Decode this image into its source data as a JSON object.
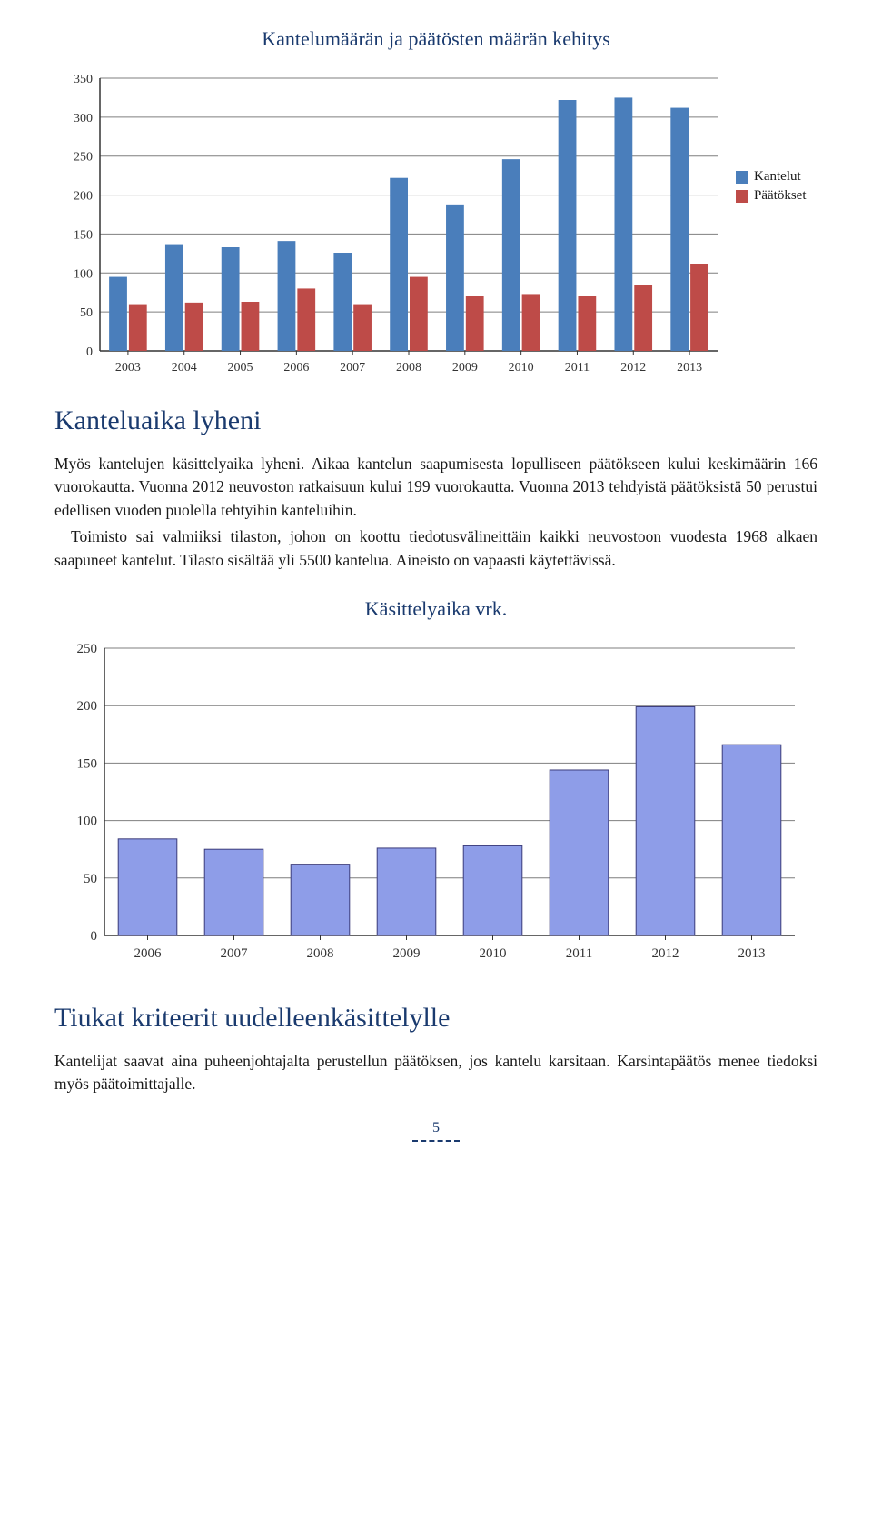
{
  "chart1": {
    "type": "grouped-bar",
    "title": "Kantelumäärän ja päätösten määrän kehitys",
    "categories": [
      "2003",
      "2004",
      "2005",
      "2006",
      "2007",
      "2008",
      "2009",
      "2010",
      "2011",
      "2012",
      "2013"
    ],
    "series": [
      {
        "name": "Kantelut",
        "color": "#4a7ebb",
        "values": [
          95,
          137,
          133,
          141,
          126,
          222,
          188,
          246,
          322,
          325,
          312
        ]
      },
      {
        "name": "Päätökset",
        "color": "#be4b48",
        "values": [
          60,
          62,
          63,
          80,
          60,
          95,
          70,
          73,
          70,
          85,
          112
        ]
      }
    ],
    "ylim": [
      0,
      350
    ],
    "ytick_step": 50,
    "background_color": "#ffffff",
    "grid_color": "#7f7f7f",
    "axis_color": "#333333",
    "tick_fontsize": 14,
    "title_fontsize": 22,
    "title_color": "#1a3a6e"
  },
  "text": {
    "heading1": "Kanteluaika lyheni",
    "para1": "Myös kantelujen käsittelyaika lyheni. Aikaa kantelun saapumisesta lopulliseen päätökseen kului keskimäärin 166 vuorokautta. Vuonna 2012 neuvoston ratkaisuun kului 199 vuorokautta. Vuonna 2013 tehdyistä päätöksistä 50 perustui edellisen vuoden puolella tehtyihin kanteluihin.",
    "para2": "Toimisto sai valmiiksi tilaston, johon on koottu tiedotusvälineittäin kaikki neuvostoon vuodesta 1968 alkaen saapuneet kantelut. Tilasto sisältää yli 5500 kantelua. Aineisto on vapaasti käytettävissä.",
    "heading2": "Tiukat kriteerit uudelleenkäsittelylle",
    "para3": "Kantelijat saavat aina puheenjohtajalta perustellun päätöksen, jos kantelu karsitaan. Karsintapäätös menee tiedoksi myös päätoimittajalle."
  },
  "chart2": {
    "type": "bar",
    "title": "Käsittelyaika vrk.",
    "categories": [
      "2006",
      "2007",
      "2008",
      "2009",
      "2010",
      "2011",
      "2012",
      "2013"
    ],
    "values": [
      84,
      75,
      62,
      76,
      78,
      144,
      199,
      166
    ],
    "bar_color": "#8e9de8",
    "bar_border": "#3c3c7a",
    "ylim": [
      0,
      250
    ],
    "ytick_step": 50,
    "background_color": "#ffffff",
    "grid_color": "#7f7f7f",
    "axis_color": "#333333",
    "tick_fontsize": 15,
    "title_fontsize": 22,
    "title_color": "#1a3a6e"
  },
  "page_number": "5"
}
